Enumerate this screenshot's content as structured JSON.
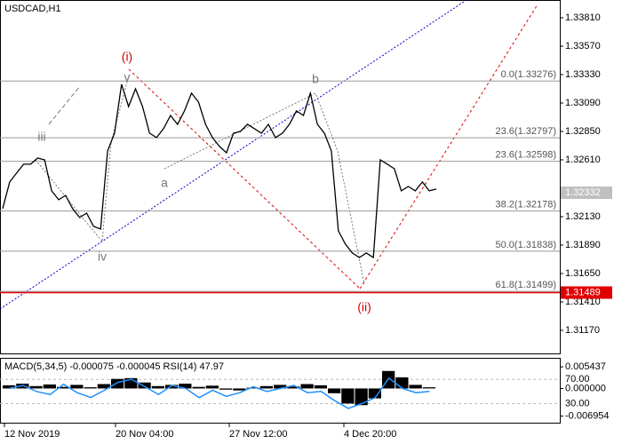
{
  "chart_data": {
    "type": "line",
    "title": "USDCAD,H1",
    "series": [
      {
        "name": "USDCAD",
        "color": "#000000",
        "values": [
          1.32198,
          1.32423,
          1.32498,
          1.32573,
          1.32573,
          1.32625,
          1.3261,
          1.32348,
          1.32273,
          1.3231,
          1.32198,
          1.32123,
          1.3216,
          1.32048,
          1.32025,
          1.32685,
          1.32835,
          1.33248,
          1.3306,
          1.3321,
          1.3306,
          1.32835,
          1.32798,
          1.32873,
          1.32985,
          1.3291,
          1.33023,
          1.33173,
          1.33098,
          1.3291,
          1.32798,
          1.32723,
          1.3267,
          1.32835,
          1.3285,
          1.3291,
          1.32873,
          1.32835,
          1.3291,
          1.32798,
          1.32835,
          1.3291,
          1.33023,
          1.32985,
          1.33173,
          1.3291,
          1.32835,
          1.32685,
          1.3201,
          1.31898,
          1.31823,
          1.31785,
          1.31823,
          1.31785,
          1.3261,
          1.32573,
          1.32535,
          1.32348,
          1.32385,
          1.32348,
          1.32423,
          1.32348,
          1.32363
        ]
      }
    ],
    "ylim": [
      1.30975,
      1.3396
    ],
    "yticks": [
      {
        "value": 1.3381,
        "label": "1.33810"
      },
      {
        "value": 1.3357,
        "label": "1.33570"
      },
      {
        "value": 1.3333,
        "label": "1.33330"
      },
      {
        "value": 1.3309,
        "label": "1.33090"
      },
      {
        "value": 1.3285,
        "label": "1.32850"
      },
      {
        "value": 1.3261,
        "label": "1.32610"
      },
      {
        "value": 1.3213,
        "label": "1.32130"
      },
      {
        "value": 1.3189,
        "label": "1.31890"
      },
      {
        "value": 1.3165,
        "label": "1.31650"
      },
      {
        "value": 1.3141,
        "label": "1.31410"
      },
      {
        "value": 1.3117,
        "label": "1.31170"
      }
    ],
    "x_labels": [
      "12 Nov 2019",
      "20 Nov 04:00",
      "27 Nov 12:00",
      "4 Dec 20:00"
    ],
    "price_lines": [
      {
        "value": 1.32332,
        "label": "1.32332",
        "color": "#c0c0c0"
      },
      {
        "value": 1.31489,
        "label": "1.31489",
        "color": "#e00000"
      }
    ],
    "fibo": [
      {
        "value": 1.33276,
        "label": "0.0(1.33276)"
      },
      {
        "value": 1.32797,
        "label": "23.6(1.32797)"
      },
      {
        "value": 1.32598,
        "label": "23.6(1.32598)"
      },
      {
        "value": 1.32178,
        "label": "38.2(1.32178)"
      },
      {
        "value": 1.31838,
        "label": "50.0(1.31838)"
      },
      {
        "value": 1.31499,
        "label": "61.8(1.31499)"
      }
    ],
    "wave_labels": [
      "(i)",
      "v",
      "iii",
      "iv",
      "a",
      "b",
      "(ii)"
    ],
    "indicator": {
      "title": "MACD(5,34,5) -0.000075 -0.000045 RSI(14) 47.97",
      "macd": {
        "color": "#000000",
        "values": [
          0.0008,
          0.0012,
          0.0006,
          0.001,
          0.0004,
          0.0009,
          0.0003,
          0.0011,
          0.0024,
          0.0026,
          0.0015,
          0.0006,
          0.0009,
          0.0012,
          0.0004,
          0.0007,
          -0.0003,
          -0.0005,
          0.0002,
          0.0006,
          0.0009,
          0.0005,
          0.0011,
          0.0008,
          -0.0012,
          -0.0038,
          -0.0042,
          -0.0025,
          0.0044,
          0.0028,
          0.0009,
          0.0003
        ]
      },
      "macd_lim": [
        -0.00884,
        0.00748
      ],
      "macd_ticks": [
        0.005437,
        {
          "value": 0,
          "label": "0.000000"
        },
        -0.006954
      ],
      "rsi": {
        "color": "#1e90ff",
        "values": [
          55,
          60,
          50,
          45,
          62,
          48,
          40,
          52,
          65,
          70,
          58,
          45,
          60,
          55,
          40,
          52,
          42,
          48,
          58,
          50,
          55,
          60,
          48,
          50,
          35,
          22,
          30,
          40,
          72,
          55,
          48,
          50
        ]
      },
      "rsi_lim": [
        -3,
        104
      ],
      "rsi_ticks": [
        {
          "value": 70,
          "label": "70.00"
        },
        {
          "value": 30,
          "label": "30.00"
        }
      ]
    }
  }
}
